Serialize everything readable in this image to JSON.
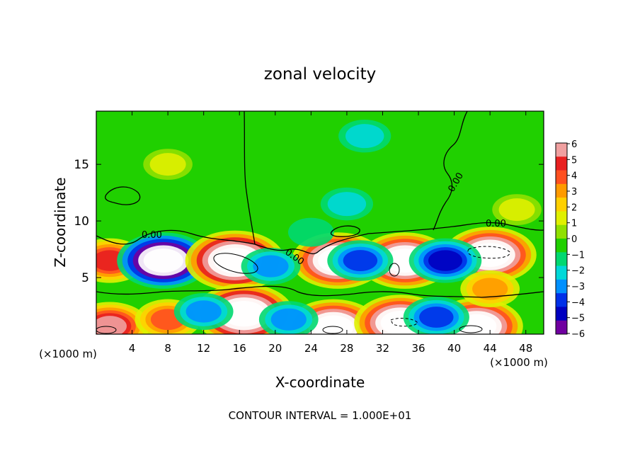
{
  "chart_data": {
    "type": "heatmap",
    "title": "zonal velocity",
    "xlabel": "X-coordinate",
    "ylabel": "Z-coordinate",
    "x_unit_label": "(×1000 m)",
    "y_unit_label": "(×1000 m)",
    "xlim": [
      0,
      50
    ],
    "ylim": [
      0,
      19.7
    ],
    "x_ticks": [
      "4",
      "8",
      "12",
      "16",
      "20",
      "24",
      "28",
      "32",
      "36",
      "40",
      "44",
      "48"
    ],
    "y_ticks": [
      "5",
      "10",
      "15"
    ],
    "x_tick_values": [
      4,
      8,
      12,
      16,
      20,
      24,
      28,
      32,
      36,
      40,
      44,
      48
    ],
    "y_tick_values": [
      5,
      10,
      15
    ],
    "colorbar": {
      "min": -6,
      "max": 6,
      "labels": [
        "6",
        "5",
        "4",
        "3",
        "2",
        "1",
        "0",
        "−1",
        "−2",
        "−3",
        "−4",
        "−5",
        "−6"
      ],
      "colors": [
        "#f0a0a0",
        "#e82020",
        "#ff5020",
        "#ff9a00",
        "#ffd000",
        "#e0f000",
        "#90e000",
        "#20d000",
        "#00d870",
        "#00d8d8",
        "#0090ff",
        "#0030e8",
        "#0000c0",
        "#7000a0"
      ],
      "saturation_color": "#ffffff"
    },
    "contour_labels": [
      "0.00",
      "0.00",
      "0.00",
      "0.00"
    ],
    "contour_interval_text": "CONTOUR INTERVAL = 1.000E+01",
    "features": [
      {
        "x": 1.5,
        "z": 6.5,
        "u": 5
      },
      {
        "x": 7.5,
        "z": 6.5,
        "u": -8
      },
      {
        "x": 15.5,
        "z": 6.5,
        "u": 9
      },
      {
        "x": 27,
        "z": 6.5,
        "u": 8
      },
      {
        "x": 34.5,
        "z": 6.5,
        "u": 8
      },
      {
        "x": 44,
        "z": 7.0,
        "u": 8
      },
      {
        "x": 16.5,
        "z": 1.8,
        "u": 9
      },
      {
        "x": 26.5,
        "z": 0.6,
        "u": 8
      },
      {
        "x": 34,
        "z": 1.0,
        "u": 8
      },
      {
        "x": 42.5,
        "z": 0.7,
        "u": 8
      },
      {
        "x": 1.5,
        "z": 0.7,
        "u": 6
      },
      {
        "x": 8,
        "z": 1.3,
        "u": 4
      },
      {
        "x": 29.5,
        "z": 6.5,
        "u": -4
      },
      {
        "x": 39,
        "z": 6.5,
        "u": -5
      },
      {
        "x": 19.5,
        "z": 6.0,
        "u": -3
      },
      {
        "x": 21.5,
        "z": 1.3,
        "u": -3
      },
      {
        "x": 38,
        "z": 1.5,
        "u": -4
      },
      {
        "x": 12,
        "z": 2.0,
        "u": -3
      },
      {
        "x": 28,
        "z": 11.5,
        "u": -2
      },
      {
        "x": 30,
        "z": 17.5,
        "u": -2
      },
      {
        "x": 24,
        "z": 9,
        "u": -1
      },
      {
        "x": 8,
        "z": 15,
        "u": 1.5
      },
      {
        "x": 47,
        "z": 11,
        "u": 1.5
      },
      {
        "x": 44,
        "z": 4.0,
        "u": 3
      }
    ]
  }
}
